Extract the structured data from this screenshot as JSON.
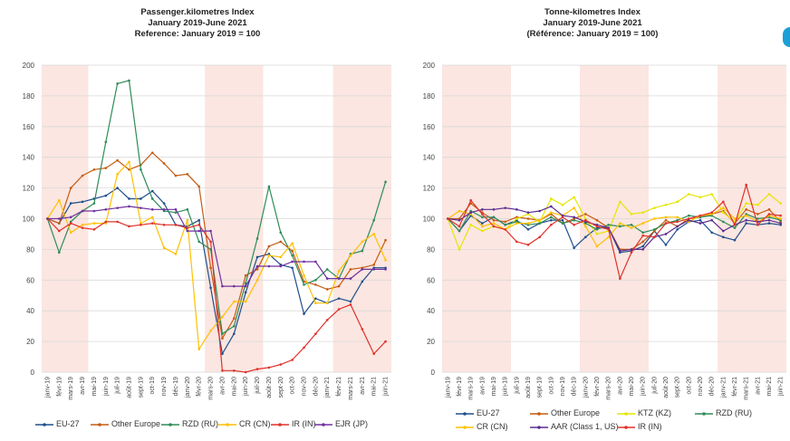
{
  "months": [
    "janv-19",
    "févr-19",
    "mars-19",
    "avr-19",
    "mai-19",
    "juin-19",
    "juil-19",
    "août-19",
    "sept-19",
    "oct-19",
    "nov-19",
    "déc-19",
    "janv-20",
    "févr-20",
    "mars-20",
    "avr-20",
    "mai-20",
    "juin-20",
    "juil-20",
    "août-20",
    "sept-20",
    "oct-20",
    "nov-20",
    "déc-20",
    "janv-21",
    "févr-21",
    "mars-21",
    "avr-21",
    "mai-21",
    "juin-21"
  ],
  "chart_data": [
    {
      "type": "line",
      "title": [
        "Passenger.kilometres Index",
        "January 2019-June 2021",
        "Reference: January 2019 = 100"
      ],
      "ylim": [
        0,
        200
      ],
      "yticks": [
        0,
        20,
        40,
        60,
        80,
        100,
        120,
        140,
        160,
        180,
        200
      ],
      "shaded_ranges": [
        [
          0,
          3.5
        ],
        [
          13.5,
          18.5
        ],
        [
          24.5,
          29
        ]
      ],
      "series": [
        {
          "name": "EU-27",
          "color": "#1f4e8c",
          "values": [
            100,
            97,
            110,
            111,
            113,
            115,
            120,
            113,
            113,
            118,
            110,
            96,
            95,
            99,
            55,
            12,
            25,
            52,
            75,
            77,
            70,
            68,
            38,
            48,
            45,
            48,
            46,
            59,
            68,
            68
          ]
        },
        {
          "name": "Other Europe",
          "color": "#c55a11",
          "values": [
            100,
            97,
            120,
            128,
            132,
            133,
            138,
            132,
            135,
            143,
            136,
            128,
            129,
            121,
            68,
            22,
            35,
            63,
            67,
            82,
            85,
            79,
            59,
            57,
            54,
            56,
            67,
            68,
            70,
            86
          ]
        },
        {
          "name": "RZD (RU)",
          "color": "#2e8b57",
          "values": [
            100,
            78,
            98,
            105,
            110,
            150,
            188,
            190,
            132,
            113,
            105,
            104,
            106,
            85,
            80,
            25,
            30,
            58,
            87,
            121,
            91,
            76,
            57,
            60,
            67,
            61,
            77,
            79,
            99,
            124
          ]
        },
        {
          "name": "CR (CN)",
          "color": "#ffc000",
          "values": [
            100,
            112,
            91,
            96,
            97,
            97,
            129,
            137,
            97,
            101,
            81,
            77,
            99,
            15,
            27,
            36,
            46,
            46,
            60,
            76,
            75,
            84,
            63,
            45,
            45,
            66,
            76,
            85,
            90,
            73
          ]
        },
        {
          "name": "IR (IN)",
          "color": "#e0312a",
          "values": [
            100,
            92,
            97,
            94,
            93,
            98,
            98,
            95,
            96,
            97,
            96,
            96,
            94,
            96,
            85,
            1,
            1,
            0,
            2,
            3,
            5,
            8,
            16,
            25,
            34,
            41,
            44,
            28,
            12,
            20
          ]
        },
        {
          "name": "EJR (JP)",
          "color": "#7030a0",
          "values": [
            100,
            100,
            101,
            105,
            105,
            106,
            107,
            108,
            107,
            106,
            106,
            106,
            92,
            92,
            92,
            56,
            56,
            56,
            69,
            69,
            69,
            72,
            72,
            72,
            61,
            61,
            61,
            67,
            67,
            67
          ]
        }
      ]
    },
    {
      "type": "line",
      "title": [
        "Tonne-kilometres Index",
        "January 2019-June 2021",
        "(Référence: January 2019 = 100)"
      ],
      "ylim": [
        0,
        200
      ],
      "yticks": [
        0,
        20,
        40,
        60,
        80,
        100,
        120,
        140,
        160,
        180,
        200
      ],
      "shaded_ranges": [
        [
          0,
          5.5
        ],
        [
          11.5,
          17.5
        ],
        [
          23.5,
          29
        ]
      ],
      "series": [
        {
          "name": "EU-27",
          "color": "#1f4e8c",
          "values": [
            100,
            92,
            102,
            97,
            101,
            96,
            99,
            93,
            97,
            99,
            99,
            81,
            88,
            94,
            94,
            78,
            79,
            82,
            92,
            83,
            93,
            98,
            99,
            91,
            88,
            86,
            97,
            96,
            97,
            96
          ]
        },
        {
          "name": "Other Europe",
          "color": "#c55a11",
          "values": [
            100,
            100,
            110,
            104,
            99,
            98,
            101,
            100,
            99,
            103,
            97,
            100,
            103,
            99,
            94,
            80,
            80,
            85,
            92,
            99,
            95,
            100,
            101,
            103,
            105,
            97,
            106,
            103,
            106,
            98
          ]
        },
        {
          "name": "KTZ (KZ)",
          "color": "#e5e500",
          "values": [
            100,
            80,
            96,
            92,
            95,
            93,
            100,
            103,
            98,
            113,
            109,
            114,
            100,
            90,
            92,
            111,
            103,
            104,
            107,
            109,
            111,
            116,
            114,
            116,
            104,
            98,
            110,
            109,
            116,
            110
          ]
        },
        {
          "name": "RZD (RU)",
          "color": "#2e8b57",
          "values": [
            100,
            92,
            105,
            101,
            101,
            96,
            98,
            96,
            97,
            101,
            97,
            99,
            97,
            93,
            96,
            95,
            96,
            91,
            93,
            97,
            99,
            102,
            101,
            102,
            98,
            94,
            103,
            100,
            101,
            99
          ]
        },
        {
          "name": "CR (CN)",
          "color": "#ffc000",
          "values": [
            100,
            105,
            103,
            95,
            97,
            93,
            97,
            97,
            99,
            104,
            102,
            107,
            95,
            82,
            88,
            97,
            94,
            97,
            100,
            101,
            101,
            98,
            102,
            103,
            107,
            100,
            102,
            98,
            102,
            100
          ]
        },
        {
          "name": "AAR (Class 1, US)",
          "color": "#5b2d90",
          "values": [
            100,
            99,
            104,
            106,
            106,
            107,
            106,
            104,
            105,
            108,
            102,
            101,
            98,
            96,
            94,
            79,
            80,
            80,
            88,
            90,
            95,
            99,
            97,
            99,
            92,
            96,
            99,
            98,
            99,
            97
          ]
        },
        {
          "name": "IR (IN)",
          "color": "#e0312a",
          "values": [
            100,
            95,
            112,
            103,
            95,
            93,
            85,
            83,
            88,
            96,
            101,
            96,
            99,
            95,
            93,
            61,
            78,
            89,
            88,
            97,
            98,
            100,
            102,
            104,
            111,
            96,
            122,
            96,
            103,
            102
          ]
        }
      ]
    }
  ],
  "legend_left": [
    "EU-27",
    "Other Europe",
    "RZD (RU)",
    "CR (CN)",
    "IR (IN)",
    "EJR (JP)"
  ],
  "legend_right": [
    "EU-27",
    "Other Europe",
    "KTZ  (KZ)",
    "RZD (RU)",
    "CR (CN)",
    "AAR (Class 1, US)",
    "IR (IN)"
  ]
}
